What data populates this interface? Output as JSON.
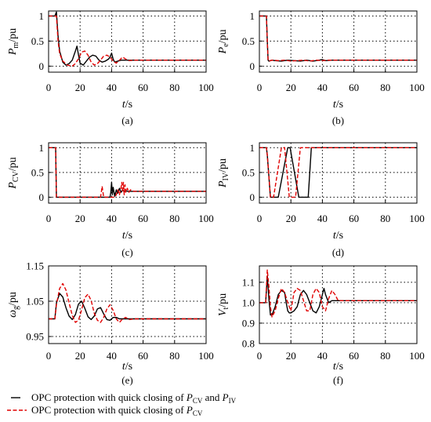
{
  "legend": {
    "black": {
      "text": "OPC protection with quick closing of ",
      "sym1": "P",
      "sub1": "CV",
      "mid": " and ",
      "sym2": "P",
      "sub2": "IV"
    },
    "red": {
      "text": "OPC protection with quick closing of ",
      "sym1": "P",
      "sub1": "CV"
    },
    "colors": {
      "black": "#000000",
      "red": "#e00000"
    }
  },
  "chart_data": [
    {
      "type": "line",
      "caption": "(a)",
      "ylabel": {
        "sym": "P",
        "sub": "m",
        "unit": "/pu"
      },
      "xlabel": {
        "sym": "t",
        "unit": "/s"
      },
      "xlim": [
        0,
        100
      ],
      "ylim": [
        -0.12,
        1.1
      ],
      "xticks": [
        "0",
        "20",
        "40",
        "60",
        "80",
        "100"
      ],
      "yticks": [
        "0",
        "0.5",
        "1"
      ],
      "series": [
        {
          "color": "black",
          "x": [
            0,
            4,
            5,
            6,
            7,
            9,
            11,
            13,
            15,
            17,
            18,
            19,
            20,
            22,
            24,
            26,
            28,
            30,
            32,
            34,
            36,
            38,
            39,
            40,
            41,
            42,
            44,
            46,
            50,
            60,
            80,
            100
          ],
          "y": [
            1,
            1,
            1.08,
            0.6,
            0.3,
            0.08,
            0.02,
            0.05,
            0.12,
            0.3,
            0.4,
            0.22,
            0.06,
            0.02,
            0.1,
            0.18,
            0.22,
            0.2,
            0.12,
            0.08,
            0.1,
            0.14,
            0.18,
            0.26,
            0.14,
            0.08,
            0.1,
            0.12,
            0.12,
            0.12,
            0.12,
            0.12
          ]
        },
        {
          "color": "red",
          "x": [
            0,
            4,
            5,
            6,
            7,
            9,
            12,
            15,
            17,
            19,
            21,
            23,
            25,
            27,
            29,
            31,
            33,
            35,
            37,
            39,
            41,
            43,
            45,
            47,
            49,
            51,
            55,
            60,
            80,
            100
          ],
          "y": [
            1,
            1,
            1.0,
            0.5,
            0.25,
            0.1,
            0.02,
            0.0,
            0.05,
            0.15,
            0.28,
            0.3,
            0.22,
            0.08,
            0.02,
            0.05,
            0.12,
            0.2,
            0.22,
            0.18,
            0.1,
            0.06,
            0.12,
            0.18,
            0.14,
            0.11,
            0.12,
            0.12,
            0.12,
            0.12
          ]
        }
      ]
    },
    {
      "type": "line",
      "caption": "(b)",
      "ylabel": {
        "sym": "P",
        "sub": "e",
        "unit": "/pu"
      },
      "xlabel": {
        "sym": "t",
        "unit": "/s"
      },
      "xlim": [
        0,
        100
      ],
      "ylim": [
        -0.12,
        1.1
      ],
      "xticks": [
        "0",
        "20",
        "40",
        "60",
        "80",
        "100"
      ],
      "yticks": [
        "0",
        "0.5",
        "1"
      ],
      "series": [
        {
          "color": "black",
          "x": [
            0,
            4.5,
            5,
            5.5,
            6,
            8,
            10,
            14,
            18,
            22,
            26,
            30,
            34,
            38,
            40,
            42,
            46,
            50,
            60,
            80,
            100
          ],
          "y": [
            1,
            1,
            0.5,
            0.12,
            0.1,
            0.12,
            0.11,
            0.1,
            0.12,
            0.11,
            0.1,
            0.12,
            0.1,
            0.12,
            0.13,
            0.11,
            0.12,
            0.12,
            0.12,
            0.12,
            0.12
          ]
        },
        {
          "color": "red",
          "x": [
            0,
            4.5,
            5,
            5.5,
            6,
            8,
            12,
            16,
            20,
            24,
            28,
            32,
            36,
            40,
            44,
            48,
            52,
            60,
            80,
            100
          ],
          "y": [
            1,
            1,
            0.5,
            0.12,
            0.1,
            0.12,
            0.11,
            0.12,
            0.1,
            0.11,
            0.12,
            0.1,
            0.12,
            0.11,
            0.12,
            0.12,
            0.12,
            0.12,
            0.12,
            0.12
          ]
        }
      ]
    },
    {
      "type": "line",
      "caption": "(c)",
      "ylabel": {
        "sym": "P",
        "sub": "CV",
        "unit": "/pu"
      },
      "xlabel": {
        "sym": "t",
        "unit": "/s"
      },
      "xlim": [
        0,
        100
      ],
      "ylim": [
        -0.12,
        1.1
      ],
      "xticks": [
        "0",
        "20",
        "40",
        "60",
        "80",
        "100"
      ],
      "yticks": [
        "0",
        "0.5",
        "1"
      ],
      "series": [
        {
          "color": "black",
          "x": [
            0,
            4.5,
            5,
            39,
            39.5,
            40,
            40.5,
            41,
            42,
            43,
            44,
            45,
            46,
            47,
            48,
            49,
            50,
            52,
            55,
            60,
            80,
            100
          ],
          "y": [
            1,
            1,
            0,
            0,
            0.1,
            0.3,
            0.05,
            0.2,
            0.02,
            0.15,
            0.08,
            0.18,
            0.1,
            0.15,
            0.11,
            0.13,
            0.12,
            0.12,
            0.12,
            0.12,
            0.12,
            0.12
          ]
        },
        {
          "color": "red",
          "x": [
            0,
            4.5,
            5,
            33,
            33.5,
            34,
            35,
            36,
            40,
            42,
            43,
            44,
            45,
            46,
            46.5,
            47,
            47.5,
            48,
            48.5,
            49,
            50,
            51,
            52,
            54,
            56,
            60,
            80,
            100
          ],
          "y": [
            1,
            1,
            0,
            0,
            0.1,
            0.22,
            0.0,
            0,
            0,
            0,
            0.05,
            0.15,
            0.05,
            0.2,
            0.3,
            0.1,
            0.3,
            0.05,
            0.25,
            0.1,
            0.18,
            0.1,
            0.15,
            0.12,
            0.12,
            0.12,
            0.12,
            0.12
          ]
        }
      ]
    },
    {
      "type": "line",
      "caption": "(d)",
      "ylabel": {
        "sym": "P",
        "sub": "IV",
        "unit": "/pu"
      },
      "xlabel": {
        "sym": "t",
        "unit": "/s"
      },
      "xlim": [
        0,
        100
      ],
      "ylim": [
        -0.12,
        1.1
      ],
      "xticks": [
        "0",
        "20",
        "40",
        "60",
        "80",
        "100"
      ],
      "yticks": [
        "0",
        "0.5",
        "1"
      ],
      "series": [
        {
          "color": "black",
          "x": [
            0,
            4.5,
            5,
            7,
            12,
            18,
            19.5,
            25,
            31,
            33,
            38,
            100
          ],
          "y": [
            1,
            1,
            0.85,
            0,
            0,
            1,
            1,
            0,
            0,
            1,
            1,
            1
          ]
        },
        {
          "color": "red",
          "x": [
            0,
            4.5,
            5,
            7,
            9,
            14,
            16,
            19,
            23,
            26,
            28,
            34,
            100
          ],
          "y": [
            1,
            1,
            0.85,
            0,
            0,
            1,
            1,
            0,
            0,
            1,
            1,
            1,
            1
          ]
        }
      ]
    },
    {
      "type": "line",
      "caption": "(e)",
      "ylabel": {
        "sym": "ω",
        "sub": "g",
        "unit": "/pu"
      },
      "xlabel": {
        "sym": "t",
        "unit": "/s"
      },
      "xlim": [
        0,
        100
      ],
      "ylim": [
        0.93,
        1.15
      ],
      "xticks": [
        "0",
        "20",
        "40",
        "60",
        "80",
        "100"
      ],
      "yticks": [
        "0.95",
        "1.05",
        "1.15"
      ],
      "series": [
        {
          "color": "black",
          "x": [
            0,
            4,
            5,
            7,
            9,
            11,
            13,
            15,
            17,
            19,
            21,
            23,
            25,
            27,
            29,
            31,
            33,
            35,
            37,
            39,
            41,
            43,
            45,
            50,
            60,
            80,
            100
          ],
          "y": [
            1.0,
            1.0,
            1.045,
            1.072,
            1.062,
            1.032,
            1.008,
            0.998,
            1.012,
            1.042,
            1.05,
            1.03,
            1.006,
            0.998,
            1.008,
            1.028,
            1.032,
            1.014,
            0.998,
            0.996,
            1.004,
            1.004,
            1.0,
            1.0,
            1.0,
            1.0,
            1.0
          ]
        },
        {
          "color": "red",
          "x": [
            0,
            4,
            5,
            7,
            9,
            11,
            13,
            15,
            17,
            19,
            21,
            23,
            25,
            27,
            29,
            31,
            33,
            35,
            37,
            39,
            41,
            43,
            45,
            47,
            49,
            51,
            55,
            60,
            80,
            100
          ],
          "y": [
            1.0,
            1.0,
            1.04,
            1.086,
            1.1,
            1.082,
            1.046,
            1.01,
            0.99,
            0.996,
            1.026,
            1.06,
            1.07,
            1.052,
            1.016,
            0.996,
            0.99,
            1.004,
            1.028,
            1.04,
            1.024,
            1.0,
            0.99,
            1.0,
            1.004,
            0.998,
            1.0,
            1.0,
            1.0,
            1.0
          ]
        }
      ]
    },
    {
      "type": "line",
      "caption": "(f)",
      "ylabel": {
        "sym": "V",
        "sub": "t",
        "unit": "/pu"
      },
      "xlabel": {
        "sym": "t",
        "unit": "/s"
      },
      "xlim": [
        0,
        100
      ],
      "ylim": [
        0.8,
        1.18
      ],
      "xticks": [
        "0",
        "20",
        "40",
        "60",
        "80",
        "100"
      ],
      "yticks": [
        "0.8",
        "0.9",
        "1.0",
        "1.1"
      ],
      "series": [
        {
          "color": "black",
          "x": [
            0,
            4,
            5,
            6,
            7,
            8,
            10,
            12,
            14,
            16,
            17,
            18,
            19,
            20,
            22,
            24,
            26,
            28,
            30,
            32,
            34,
            36,
            38,
            40,
            41,
            42,
            44,
            46,
            50,
            60,
            80,
            100
          ],
          "y": [
            1.0,
            1.0,
            1.13,
            1.02,
            0.94,
            0.94,
            0.98,
            1.04,
            1.06,
            1.05,
            1.0,
            0.96,
            0.95,
            0.95,
            0.96,
            0.98,
            1.04,
            1.06,
            1.04,
            1.0,
            0.96,
            0.95,
            0.98,
            1.04,
            1.07,
            1.04,
            1.0,
            1.01,
            1.01,
            1.01,
            1.01,
            1.01
          ]
        },
        {
          "color": "red",
          "x": [
            0,
            4,
            5,
            6,
            7,
            8,
            10,
            12,
            14,
            16,
            18,
            20,
            22,
            24,
            26,
            28,
            30,
            32,
            34,
            36,
            38,
            40,
            42,
            44,
            46,
            48,
            50,
            55,
            60,
            80,
            100
          ],
          "y": [
            1.0,
            1.0,
            1.16,
            1.08,
            0.98,
            0.93,
            0.96,
            1.02,
            1.07,
            1.05,
            1.0,
            0.96,
            1.05,
            1.07,
            1.06,
            1.01,
            0.96,
            0.96,
            1.04,
            1.07,
            1.05,
            0.98,
            0.96,
            1.02,
            1.06,
            1.04,
            1.01,
            1.01,
            1.01,
            1.01,
            1.01
          ]
        }
      ]
    }
  ]
}
